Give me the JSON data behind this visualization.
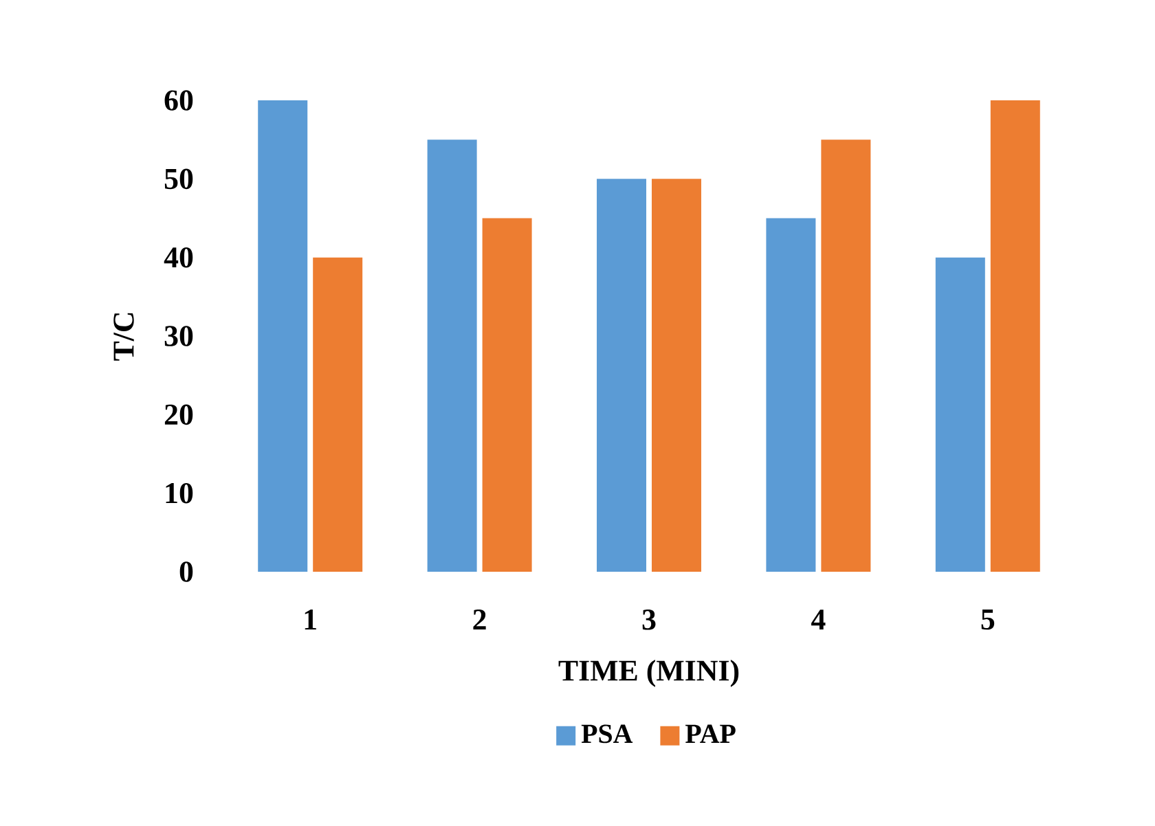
{
  "chart_data": {
    "type": "bar",
    "xlabel": "TIME (MINI)",
    "ylabel": "T/C",
    "categories": [
      "1",
      "2",
      "3",
      "4",
      "5"
    ],
    "series": [
      {
        "name": "PSA",
        "color": "#5b9bd5",
        "values": [
          60,
          55,
          50,
          45,
          40
        ]
      },
      {
        "name": "PAP",
        "color": "#ed7d31",
        "values": [
          40,
          45,
          50,
          55,
          60
        ]
      }
    ],
    "ylim": [
      0,
      60
    ],
    "yticks": [
      0,
      10,
      20,
      30,
      40,
      50,
      60
    ],
    "grid": false,
    "legend": "bottom"
  }
}
